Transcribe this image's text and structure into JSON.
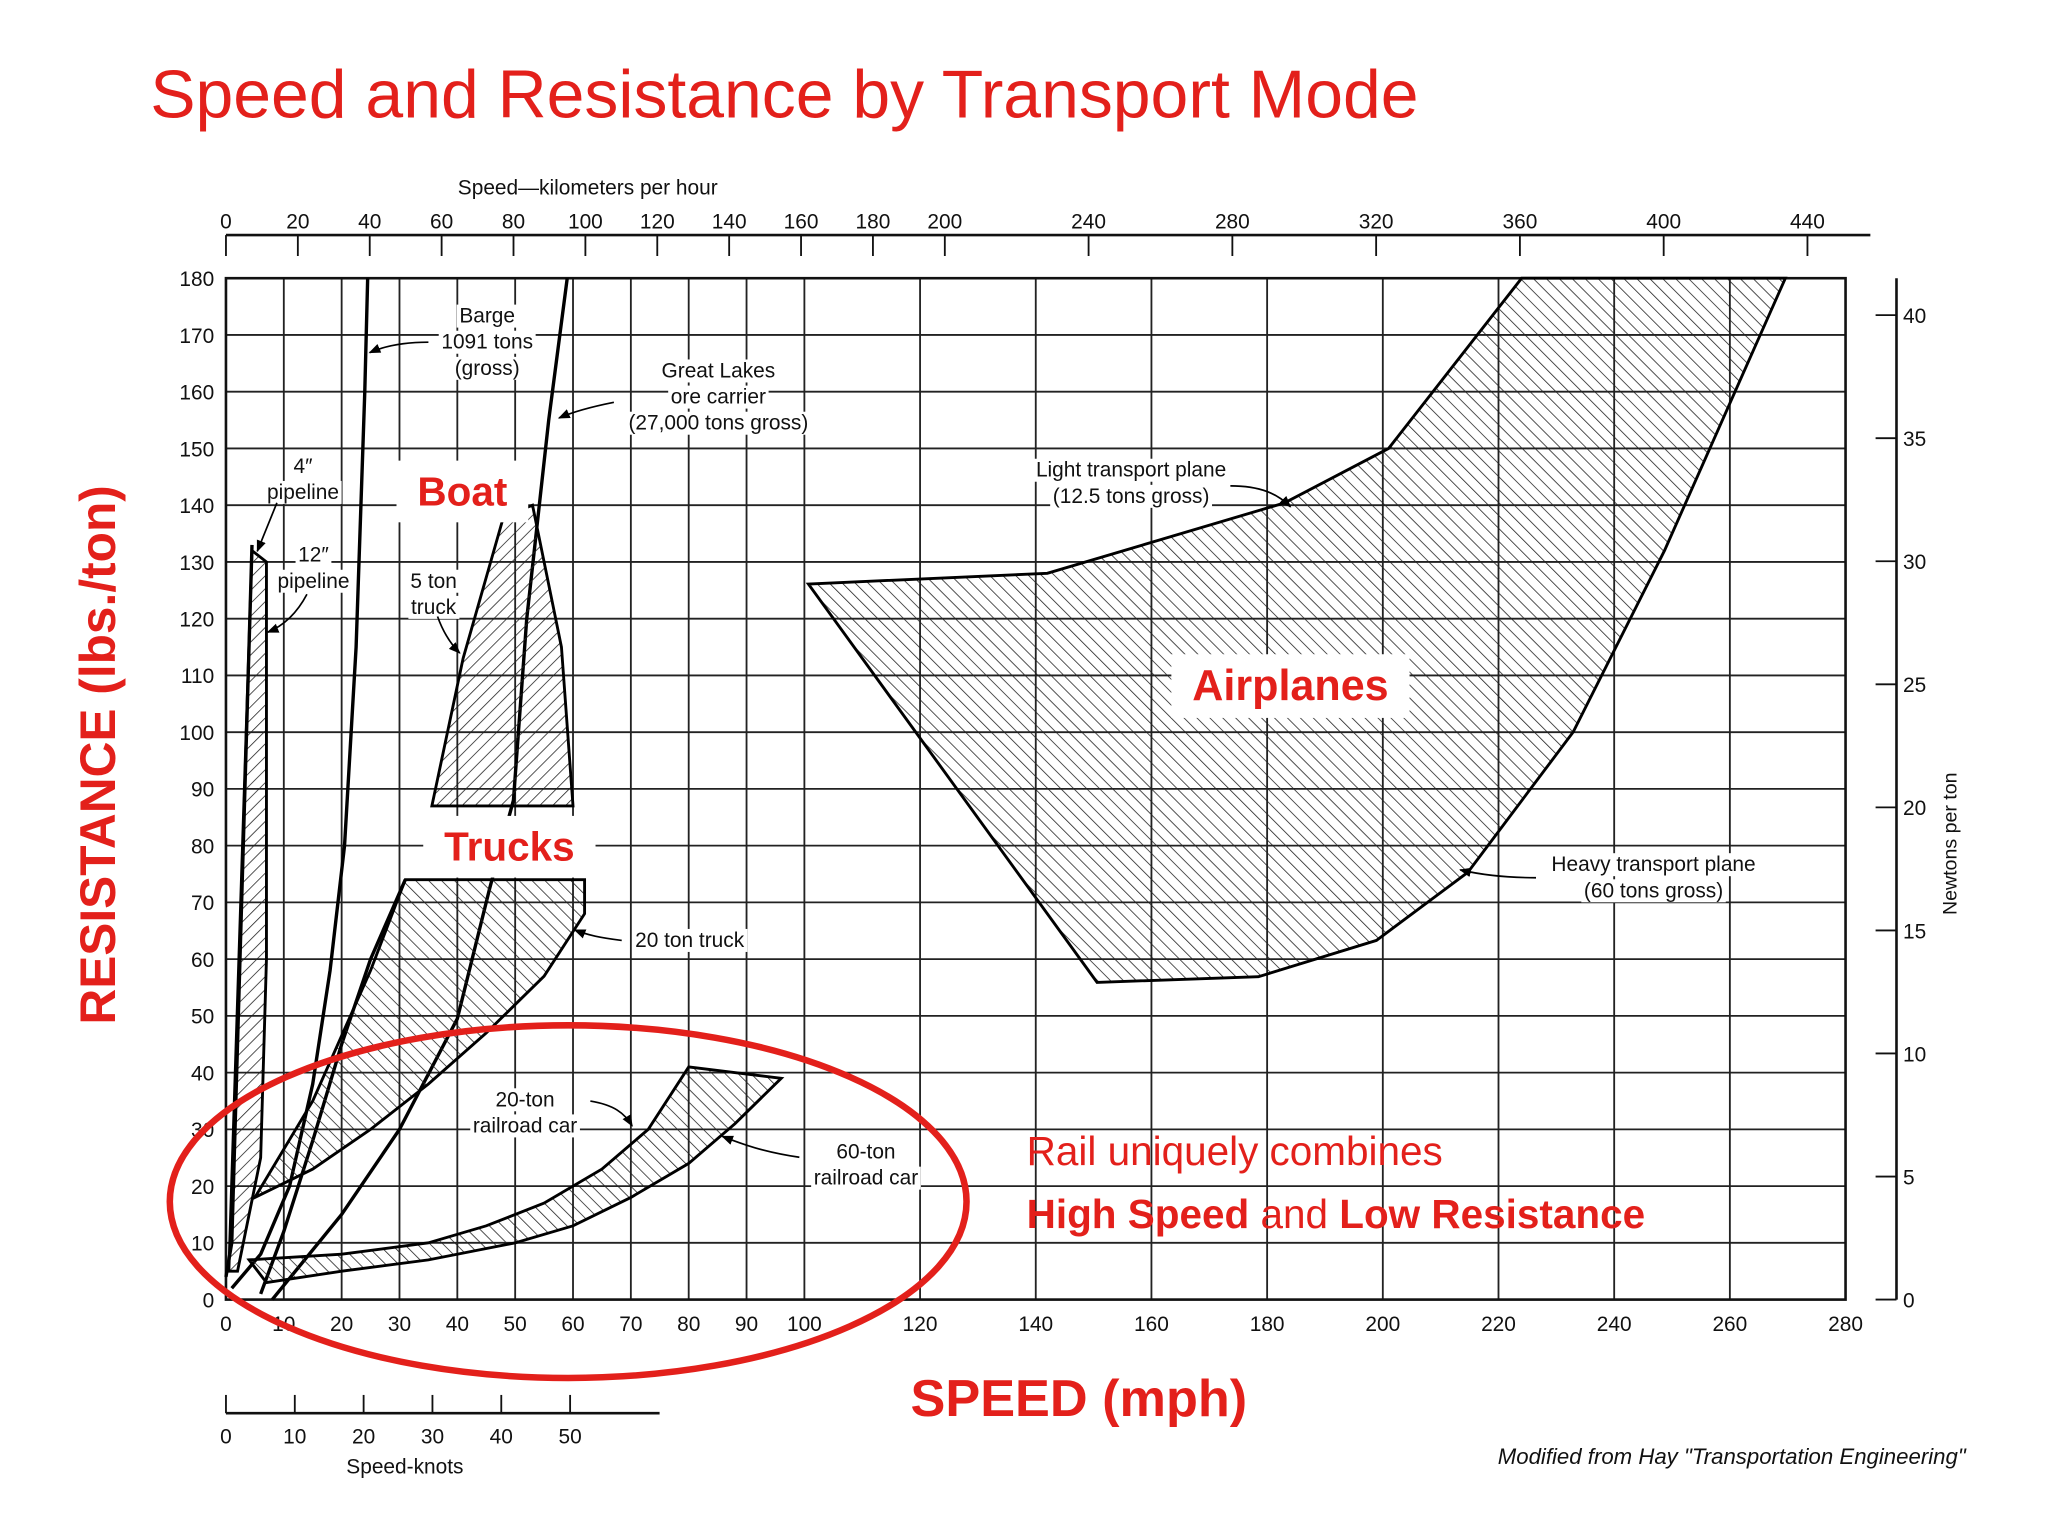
{
  "chart_data": {
    "type": "band",
    "title": "Speed and Resistance by Transport Mode",
    "x_label": "SPEED (mph)",
    "y_label": "RESISTANCE (lbs./ton)",
    "xlim": [
      0,
      280
    ],
    "xticks": [
      0,
      10,
      20,
      30,
      40,
      50,
      60,
      70,
      80,
      90,
      100,
      120,
      140,
      160,
      180,
      200,
      220,
      240,
      260,
      280
    ],
    "ylim": [
      0,
      180
    ],
    "yticks": [
      0,
      10,
      20,
      30,
      40,
      50,
      60,
      70,
      80,
      90,
      100,
      110,
      120,
      130,
      140,
      150,
      160,
      170,
      180
    ],
    "grid": true,
    "x2_label": "Speed—kilometers per hour",
    "x2lim": [
      0,
      450.6
    ],
    "x2ticks": [
      0,
      20,
      40,
      60,
      80,
      100,
      120,
      140,
      160,
      180,
      200,
      240,
      280,
      320,
      360,
      400,
      440
    ],
    "y2_label": "Newtons per ton",
    "y2lim": [
      0,
      41.5
    ],
    "y2ticks": [
      0,
      5,
      10,
      15,
      20,
      25,
      30,
      35,
      40
    ],
    "x3_label": "Speed-knots",
    "x3lim": [
      0,
      63
    ],
    "x3ticks": [
      0,
      10,
      20,
      30,
      40,
      50
    ],
    "series": [
      {
        "kind": "band",
        "hatch": "/",
        "color": "#000000",
        "x": [
          0.5,
          4.5,
          7,
          7,
          6,
          2
        ],
        "values": [
          5,
          132,
          130,
          60,
          25,
          5
        ]
      },
      {
        "kind": "line",
        "color": "#000000",
        "x": [
          0,
          1,
          4.5
        ],
        "values": [
          4,
          10,
          133
        ]
      },
      {
        "kind": "line",
        "color": "#000000",
        "x": [
          1,
          6,
          11,
          15,
          18,
          20.5,
          22.5,
          24,
          24.5
        ],
        "values": [
          2,
          8,
          20,
          38,
          58,
          80,
          115,
          160,
          180
        ]
      },
      {
        "kind": "line",
        "color": "#000000",
        "x": [
          8,
          20,
          30,
          40,
          45.6,
          49.7,
          52,
          55.8,
          59
        ],
        "values": [
          0,
          15,
          30,
          49.5,
          72.5,
          88,
          120,
          155,
          180
        ]
      },
      {
        "kind": "line",
        "color": "#000000",
        "x": [
          6,
          10,
          15,
          20,
          25,
          31
        ],
        "values": [
          1,
          12,
          28,
          45,
          60,
          74
        ]
      },
      {
        "kind": "band",
        "hatch": "\\",
        "color": "#000000",
        "x": [
          5,
          15,
          25,
          31,
          62,
          62,
          55,
          45,
          35,
          25,
          15
        ],
        "values": [
          18,
          35,
          58,
          74,
          74,
          68,
          57,
          47,
          38,
          30,
          23
        ]
      },
      {
        "kind": "band",
        "hatch": "/",
        "color": "#000000",
        "x": [
          35.6,
          41,
          48,
          53,
          58,
          60
        ],
        "values": [
          87,
          113,
          138,
          140,
          115,
          87
        ]
      },
      {
        "kind": "band",
        "hatch": "\\",
        "color": "#000000",
        "x": [
          4,
          20,
          35,
          45,
          55,
          65,
          73,
          80,
          96,
          88,
          80,
          70,
          60,
          50,
          35,
          20,
          7
        ],
        "values": [
          7,
          8,
          10,
          13,
          17,
          23,
          30,
          41,
          39,
          31,
          24,
          18,
          13,
          10,
          7,
          5,
          3
        ]
      },
      {
        "kind": "band",
        "hatch": "\\",
        "color": "#000000",
        "x": [
          100.7,
          142,
          183,
          201,
          224,
          269.6,
          248.7,
          232.9,
          214.7,
          198.9,
          178.5,
          150.6
        ],
        "values": [
          126.1,
          128,
          140.4,
          150,
          180,
          180,
          132,
          100,
          75.3,
          63.3,
          56.9,
          55.9
        ]
      }
    ],
    "annotations": [
      [
        "Barge",
        "1091 tons",
        "(gross)"
      ],
      [
        "Great Lakes",
        "ore carrier",
        "(27,000 tons gross)"
      ],
      [
        "4″",
        "pipeline"
      ],
      [
        "12″",
        "pipeline"
      ],
      [
        "5 ton",
        "truck"
      ],
      [
        "Light transport plane",
        "(12.5 tons gross)"
      ],
      [
        "Heavy transport plane",
        "(60 tons gross)"
      ],
      [
        "20 ton truck"
      ],
      [
        "20-ton",
        "railroad car"
      ],
      [
        "60-ton",
        "railroad car"
      ]
    ],
    "mode_labels": [
      "Boat",
      "Trucks",
      "Airplanes"
    ],
    "callout": {
      "line1": "Rail uniquely combines",
      "line2": [
        "High Speed",
        " and ",
        "Low Resistance"
      ]
    },
    "source": "Modified from Hay \"Transportation Engineering\""
  }
}
